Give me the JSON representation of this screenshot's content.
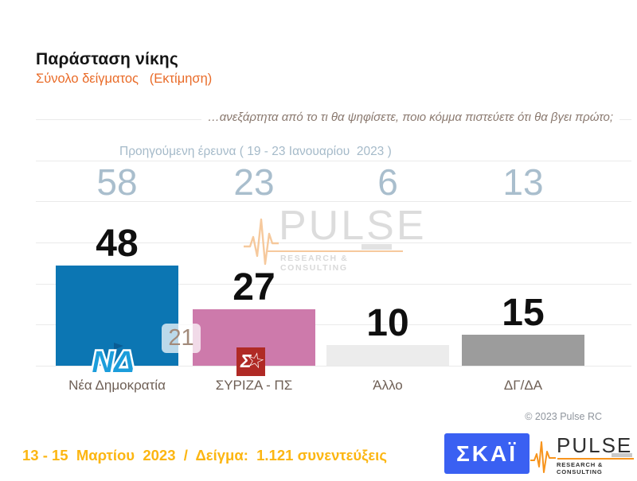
{
  "slide": {
    "title": "Παράσταση νίκης",
    "subtitle": "Σύνολο δείγματος   (Εκτίμηση)",
    "question": "…ανεξάρτητα από το τι θα ψηφίσετε, ποιο κόμμα πιστεύετε ότι θα βγει πρώτο;",
    "previous_survey_label": "Προηγούμενη έρευνα ( 19 - 23 Ιανουαρίου  2023 )",
    "copyright": "© 2023 Pulse RC",
    "footer": "13 - 15  Μαρτίου  2023  /  Δείγμα:  1.121 συνεντεύξεις"
  },
  "chart_data": {
    "type": "bar",
    "title": "Παράσταση νίκης",
    "categories": [
      "Νέα Δημοκρατία",
      "ΣΥΡΙΖΑ - ΠΣ",
      "Άλλο",
      "ΔΓ/ΔΑ"
    ],
    "series": [
      {
        "name": "Προηγούμενη έρευνα ( 19 - 23 Ιανουαρίου 2023 )",
        "values": [
          58,
          23,
          6,
          13
        ]
      },
      {
        "name": "13 - 15 Μαρτίου 2023",
        "values": [
          48,
          27,
          10,
          15
        ]
      }
    ],
    "lead_gap": "21",
    "bar_colors": [
      "#0c76b3",
      "#cd7aab",
      "#ececec",
      "#9c9c9c"
    ],
    "ylim": [
      0,
      120
    ],
    "gridline_step": 20,
    "grid": "horizontal",
    "legend_position": "none"
  },
  "logos": {
    "nd": "ΝΔ",
    "syriza_letter": "Σ",
    "skai": "ΣΚΑΪ",
    "pulse_brand": "PULSE",
    "pulse_tagline": "RESEARCH & CONSULTING"
  },
  "colors": {
    "accent_orange": "#e96b28",
    "footer_yellow": "#fcb612",
    "skai_blue": "#3a60f2",
    "syriza_red": "#b02a25",
    "nd_blue": "#1b9ddb",
    "pulse_orange": "#f7941d",
    "prev_values": "#a9becd",
    "question_text": "#8a796f",
    "category_label": "#6e5f55"
  }
}
